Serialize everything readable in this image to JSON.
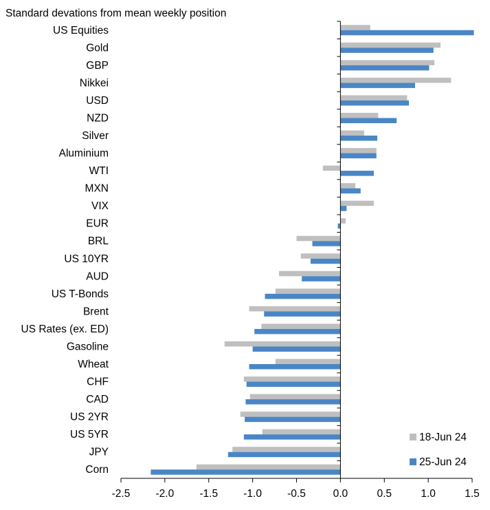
{
  "chart_data": {
    "type": "bar",
    "orientation": "horizontal",
    "title": "Standard devations from mean weekly position",
    "xlabel": "",
    "ylabel": "",
    "xlim": [
      -2.5,
      1.5
    ],
    "xticks": [
      "-2.5",
      "-2.0",
      "-1.5",
      "-1.0",
      "-0.5",
      "0.0",
      "0.5",
      "1.0",
      "1.5"
    ],
    "grid": false,
    "legend_position": "bottom-right",
    "categories": [
      "US Equities",
      "Gold",
      "GBP",
      "Nikkei",
      "USD",
      "NZD",
      "Silver",
      "Aluminium",
      "WTI",
      "MXN",
      "VIX",
      "EUR",
      "BRL",
      "US 10YR",
      "AUD",
      "US T-Bonds",
      "Brent",
      "US Rates (ex. ED)",
      "Gasoline",
      "Wheat",
      "CHF",
      "CAD",
      "US 2YR",
      "US 5YR",
      "JPY",
      "Corn"
    ],
    "series": [
      {
        "name": "18-Jun 24",
        "color": "#BFBFBF",
        "values": [
          0.34,
          1.14,
          1.07,
          1.26,
          0.76,
          0.43,
          0.27,
          0.41,
          -0.2,
          0.17,
          0.38,
          0.06,
          -0.5,
          -0.45,
          -0.7,
          -0.74,
          -1.04,
          -0.9,
          -1.32,
          -0.74,
          -1.1,
          -1.03,
          -1.14,
          -0.89,
          -1.23,
          -1.64
        ]
      },
      {
        "name": "25-Jun 24",
        "color": "#4A86C5",
        "values": [
          1.52,
          1.06,
          1.01,
          0.85,
          0.78,
          0.64,
          0.42,
          0.41,
          0.38,
          0.23,
          0.07,
          -0.03,
          -0.32,
          -0.34,
          -0.44,
          -0.86,
          -0.87,
          -0.98,
          -1.0,
          -1.04,
          -1.07,
          -1.08,
          -1.09,
          -1.1,
          -1.28,
          -2.16
        ]
      }
    ]
  }
}
